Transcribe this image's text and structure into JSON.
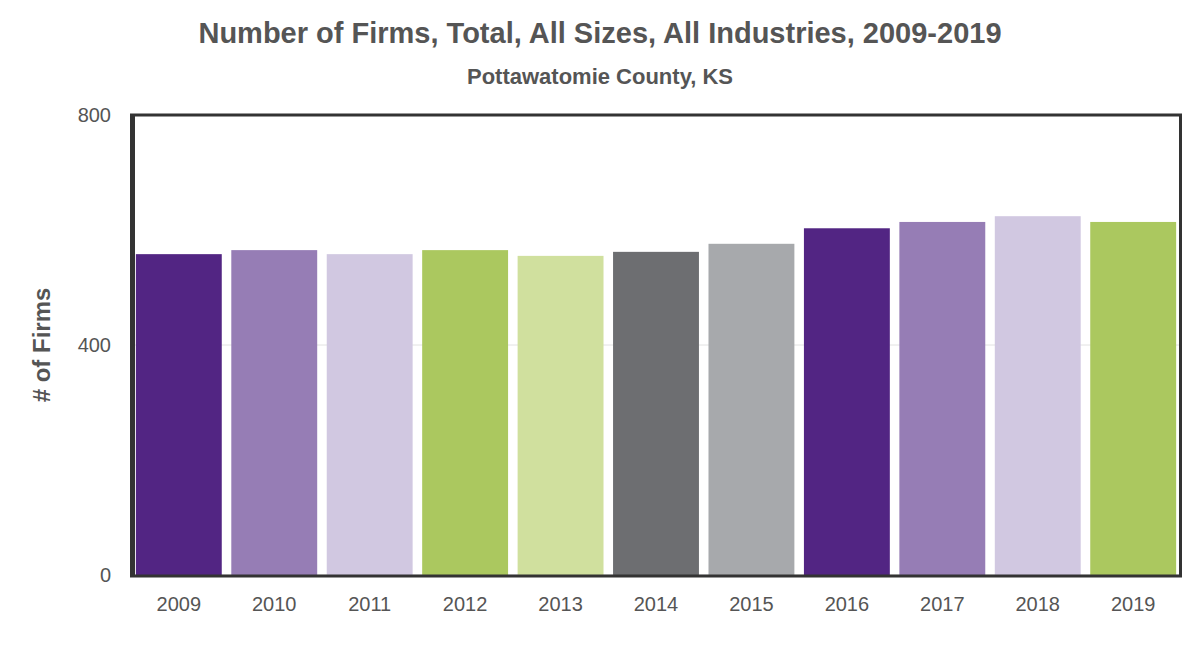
{
  "chart_data": {
    "type": "bar",
    "title": "Number of Firms, Total, All Sizes, All Industries, 2009-2019",
    "subtitle": "Pottawatomie County, KS",
    "y_label": "# of Firms",
    "categories": [
      "2009",
      "2010",
      "2011",
      "2012",
      "2013",
      "2014",
      "2015",
      "2016",
      "2017",
      "2018",
      "2019"
    ],
    "values": [
      558,
      565,
      558,
      565,
      555,
      562,
      576,
      603,
      614,
      624,
      614
    ],
    "colors": [
      "#522583",
      "#967db5",
      "#d1c8e1",
      "#abc85f",
      "#d0e09e",
      "#6d6e71",
      "#a7a9ac",
      "#522583",
      "#967db5",
      "#d1c8e1",
      "#abc85f"
    ],
    "ylim": [
      0,
      800
    ],
    "yticks": [
      0,
      400,
      800
    ],
    "grid": true
  }
}
